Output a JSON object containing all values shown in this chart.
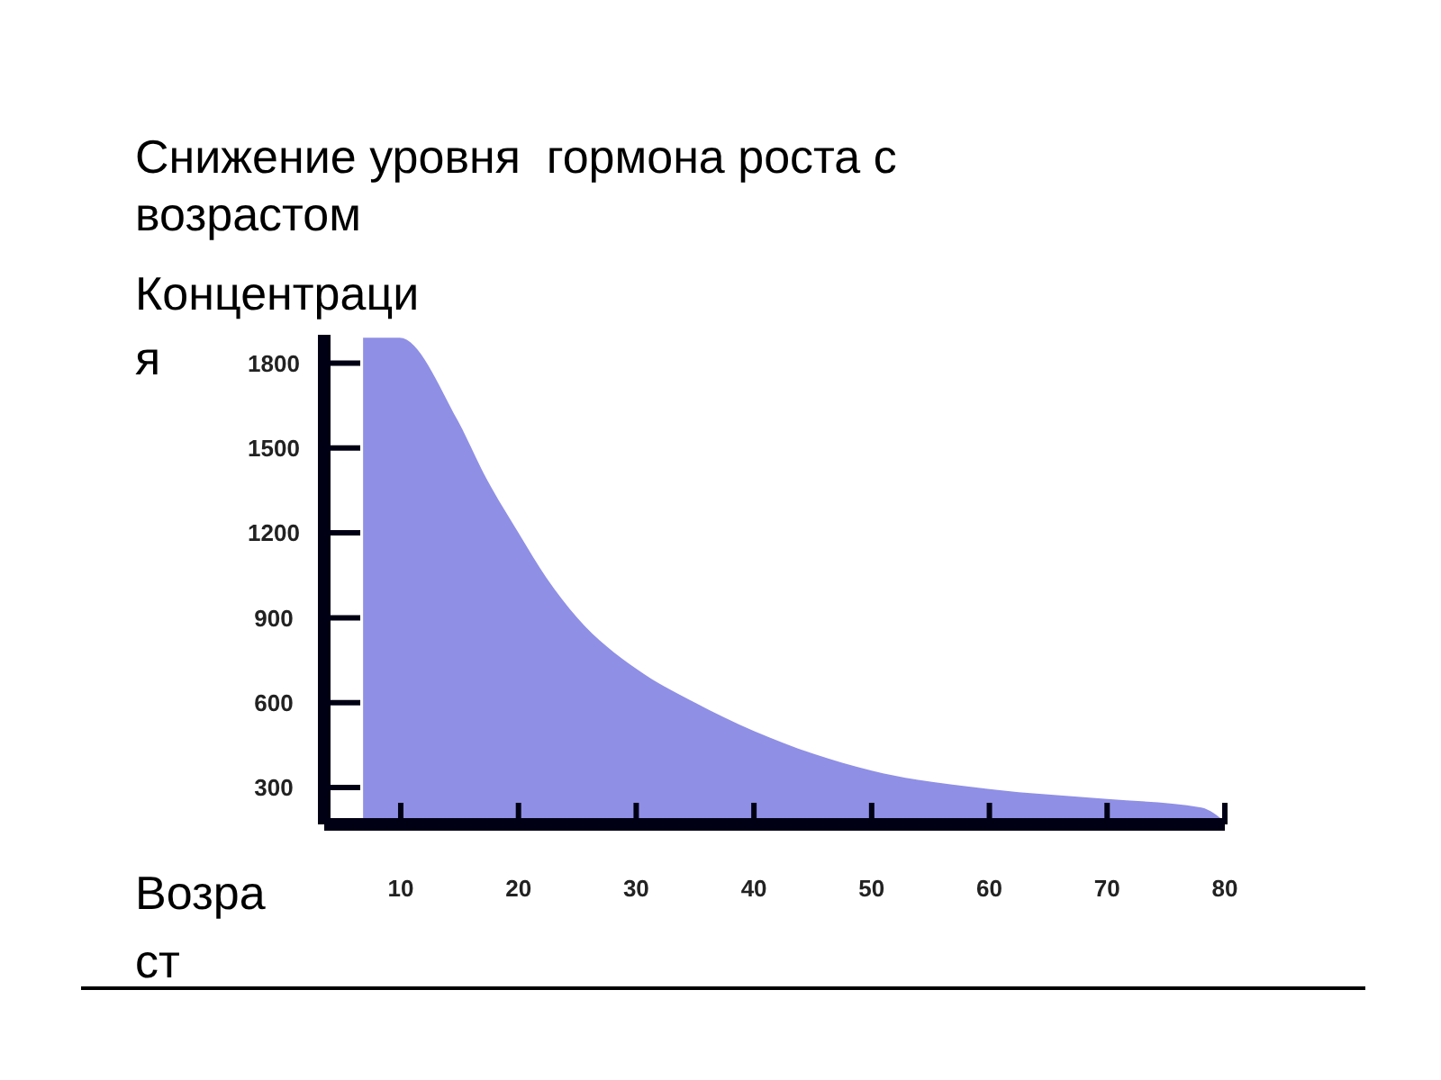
{
  "chart_data": {
    "type": "area",
    "title": "Снижение уровня  гормона роста с возрастом",
    "ylabel": "Концентрация",
    "xlabel": "Возраст",
    "color": "#8f8fe6",
    "x": [
      6.8,
      9.9,
      14.8,
      17.3,
      20,
      22.4,
      25,
      30,
      35,
      40,
      50,
      60,
      70,
      78,
      80
    ],
    "values": [
      1890,
      1890,
      1600,
      1390,
      1200,
      1040,
      900,
      720,
      600,
      500,
      360,
      295,
      260,
      230,
      180
    ],
    "xlim": [
      3.5,
      80
    ],
    "xticks": [
      10,
      20,
      30,
      40,
      50,
      60,
      70,
      80
    ],
    "ylim": [
      170,
      1900
    ],
    "yticks": [
      300,
      600,
      900,
      1200,
      1500,
      1800
    ]
  }
}
